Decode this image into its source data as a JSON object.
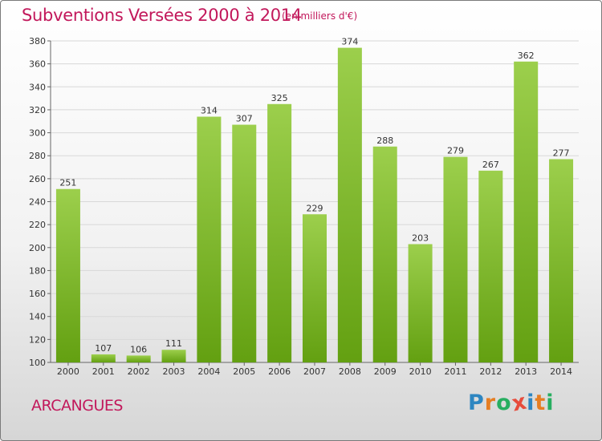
{
  "title": "Subventions Versées 2000 à 2014",
  "subtitle": "(en milliers d'€)",
  "commune": "ARCANGUES",
  "logo": {
    "letters": [
      "P",
      "r",
      "o",
      "x",
      "i",
      "t",
      "i"
    ],
    "colors": [
      "#2e86c1",
      "#e67e22",
      "#27ae60",
      "#e74c3c",
      "#2e86c1",
      "#e67e22",
      "#27ae60"
    ]
  },
  "colors": {
    "accent": "#c2185b",
    "bar_top": "#9ccf4c",
    "bar_bottom": "#63a011",
    "grid": "#d8d8d8"
  },
  "chart_data": {
    "type": "bar",
    "title": "Subventions Versées 2000 à 2014",
    "subtitle": "(en milliers d'€)",
    "categories": [
      "2000",
      "2001",
      "2002",
      "2003",
      "2004",
      "2005",
      "2006",
      "2007",
      "2008",
      "2009",
      "2010",
      "2011",
      "2012",
      "2013",
      "2014"
    ],
    "values": [
      251,
      107,
      106,
      111,
      314,
      307,
      325,
      229,
      374,
      288,
      203,
      279,
      267,
      362,
      277
    ],
    "ylim": [
      100,
      380
    ],
    "yticks": [
      100,
      120,
      140,
      160,
      180,
      200,
      220,
      240,
      260,
      280,
      300,
      320,
      340,
      360,
      380
    ],
    "grid": true,
    "legend": "none"
  }
}
